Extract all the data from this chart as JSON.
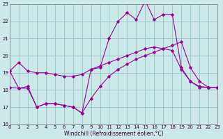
{
  "xlabel": "Windchill (Refroidissement éolien,°C)",
  "background_color": "#cce8e8",
  "grid_color": "#99cccc",
  "line_color": "#990099",
  "xlim": [
    0,
    23
  ],
  "ylim": [
    16,
    23
  ],
  "yticks": [
    16,
    17,
    18,
    19,
    20,
    21,
    22,
    23
  ],
  "xticks": [
    0,
    1,
    2,
    3,
    4,
    5,
    6,
    7,
    8,
    9,
    10,
    11,
    12,
    13,
    14,
    15,
    16,
    17,
    18,
    19,
    20,
    21,
    22,
    23
  ],
  "series1_x": [
    0,
    1,
    2,
    3,
    4,
    5,
    6,
    7,
    8,
    9,
    10,
    11,
    12,
    13,
    14,
    15,
    16,
    17,
    18,
    19,
    20,
    21,
    22,
    23
  ],
  "series1_y": [
    19.1,
    19.6,
    19.1,
    19.0,
    19.0,
    18.9,
    18.8,
    18.8,
    18.9,
    19.2,
    19.4,
    19.6,
    19.8,
    20.0,
    20.2,
    20.4,
    20.5,
    20.4,
    20.3,
    19.2,
    18.5,
    18.2,
    18.15,
    18.15
  ],
  "series2_x": [
    0,
    1,
    2,
    3,
    4,
    5,
    6,
    7,
    8,
    9,
    10,
    11,
    12,
    13,
    14,
    15,
    16,
    17,
    18,
    19,
    20,
    21,
    22,
    23
  ],
  "series2_y": [
    19.1,
    18.1,
    18.2,
    17.0,
    17.2,
    17.2,
    17.1,
    17.0,
    16.65,
    19.2,
    19.3,
    21.0,
    22.0,
    22.5,
    22.1,
    23.2,
    22.1,
    22.4,
    22.4,
    19.3,
    18.5,
    18.15,
    18.15,
    18.15
  ],
  "series3_x": [
    0,
    1,
    2,
    3,
    4,
    5,
    6,
    7,
    8,
    9,
    10,
    11,
    12,
    13,
    14,
    15,
    16,
    17,
    18,
    19,
    20,
    21,
    22,
    23
  ],
  "series3_y": [
    18.15,
    18.1,
    18.1,
    17.0,
    17.2,
    17.2,
    17.1,
    17.0,
    16.65,
    17.5,
    18.2,
    18.8,
    19.2,
    19.5,
    19.8,
    20.0,
    20.2,
    20.4,
    20.6,
    20.8,
    19.3,
    18.5,
    18.15,
    18.15
  ]
}
